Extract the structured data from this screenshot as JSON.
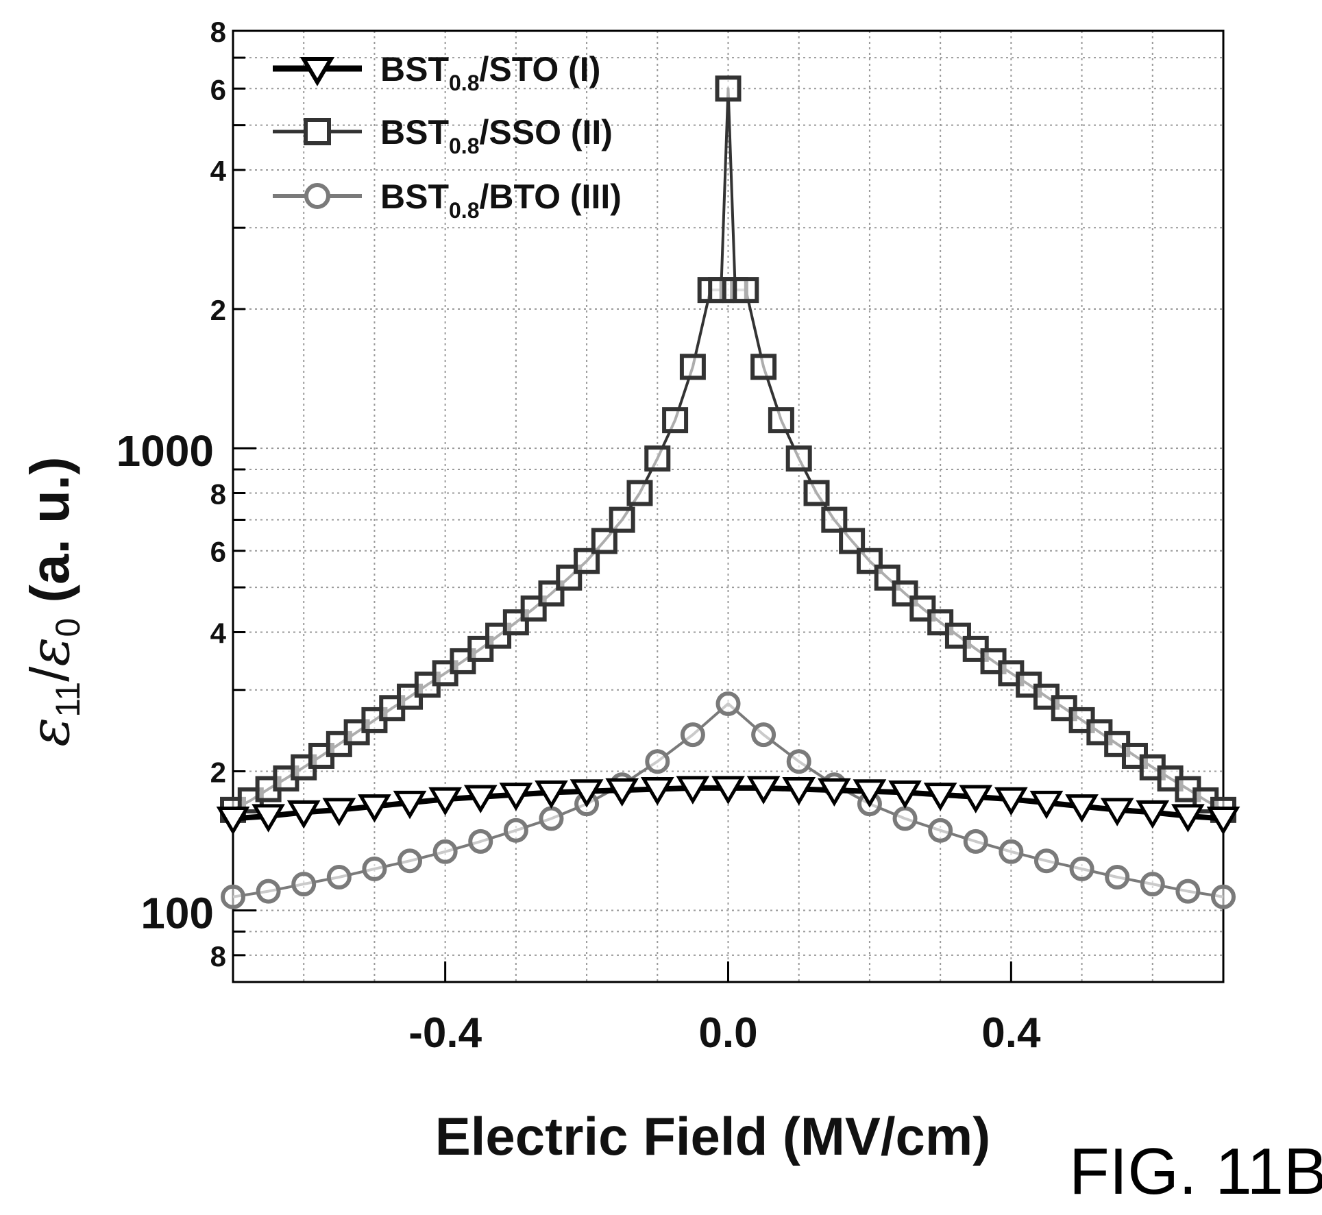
{
  "figure_label": "FIG. 11B",
  "chart_data": {
    "type": "line",
    "xlabel": "Electric Field (MV/cm)",
    "ylabel": "ε11/ε0 (a. u.)",
    "ylabel_parts": {
      "eps": "ε",
      "sub1": "11",
      "slash": "/",
      "sub0": "0",
      "units": " (a. u.)"
    },
    "xlim": [
      -0.7,
      0.7
    ],
    "ylim": [
      70,
      8000
    ],
    "yscale": "log",
    "grid": true,
    "legend_position": "top-left",
    "x_ticks": [
      {
        "value": -0.4,
        "label": "-0.4"
      },
      {
        "value": 0.0,
        "label": "0.0"
      },
      {
        "value": 0.4,
        "label": "0.4"
      }
    ],
    "y_major_ticks": [
      {
        "value": 100,
        "label": "100"
      },
      {
        "value": 1000,
        "label": "1000"
      }
    ],
    "y_minor_ticks": [
      {
        "value": 80,
        "label": "8"
      },
      {
        "value": 200,
        "label": "2"
      },
      {
        "value": 400,
        "label": "4"
      },
      {
        "value": 600,
        "label": "6"
      },
      {
        "value": 800,
        "label": "8"
      },
      {
        "value": 2000,
        "label": "2"
      },
      {
        "value": 4000,
        "label": "4"
      },
      {
        "value": 6000,
        "label": "6"
      },
      {
        "value": 8000,
        "label": "8"
      }
    ],
    "series": [
      {
        "name": "BST0.8/STO (I)",
        "name_main": "BST",
        "name_sub": "0.8",
        "name_rest": "/STO (I)",
        "marker": "triangle-down",
        "color": "#000000",
        "x": [
          -0.7,
          -0.65,
          -0.6,
          -0.55,
          -0.5,
          -0.45,
          -0.4,
          -0.35,
          -0.3,
          -0.25,
          -0.2,
          -0.15,
          -0.1,
          -0.05,
          0.0,
          0.05,
          0.1,
          0.15,
          0.2,
          0.25,
          0.3,
          0.35,
          0.4,
          0.45,
          0.5,
          0.55,
          0.6,
          0.65,
          0.7
        ],
        "y": [
          158,
          160,
          163,
          165,
          168,
          171,
          174,
          176,
          178,
          180,
          181,
          182,
          183,
          184,
          184,
          184,
          183,
          182,
          181,
          180,
          178,
          176,
          174,
          171,
          168,
          165,
          163,
          160,
          158
        ]
      },
      {
        "name": "BST0.8/SSO (II)",
        "name_main": "BST",
        "name_sub": "0.8",
        "name_rest": "/SSO (II)",
        "marker": "square",
        "color": "#333333",
        "x": [
          -0.7,
          -0.675,
          -0.65,
          -0.625,
          -0.6,
          -0.575,
          -0.55,
          -0.525,
          -0.5,
          -0.475,
          -0.45,
          -0.425,
          -0.4,
          -0.375,
          -0.35,
          -0.325,
          -0.3,
          -0.275,
          -0.25,
          -0.225,
          -0.2,
          -0.175,
          -0.15,
          -0.125,
          -0.1,
          -0.075,
          -0.05,
          -0.025,
          -0.01,
          0.0,
          0.01,
          0.025,
          0.05,
          0.075,
          0.1,
          0.125,
          0.15,
          0.175,
          0.2,
          0.225,
          0.25,
          0.275,
          0.3,
          0.325,
          0.35,
          0.375,
          0.4,
          0.425,
          0.45,
          0.475,
          0.5,
          0.525,
          0.55,
          0.575,
          0.6,
          0.625,
          0.65,
          0.675,
          0.7
        ],
        "y": [
          165,
          173,
          183,
          193,
          204,
          216,
          229,
          243,
          258,
          274,
          290,
          308,
          326,
          346,
          368,
          393,
          420,
          450,
          485,
          525,
          570,
          630,
          700,
          800,
          950,
          1150,
          1500,
          2200,
          2200,
          6000,
          2200,
          2200,
          1500,
          1150,
          950,
          800,
          700,
          630,
          570,
          525,
          485,
          450,
          420,
          393,
          368,
          346,
          326,
          308,
          290,
          274,
          258,
          243,
          229,
          216,
          204,
          193,
          183,
          173,
          165
        ]
      },
      {
        "name": "BST0.8/BTO (III)",
        "name_main": "BST",
        "name_sub": "0.8",
        "name_rest": "/BTO (III)",
        "marker": "circle",
        "color": "#7a7a7a",
        "x": [
          -0.7,
          -0.65,
          -0.6,
          -0.55,
          -0.5,
          -0.45,
          -0.4,
          -0.35,
          -0.3,
          -0.25,
          -0.2,
          -0.15,
          -0.1,
          -0.05,
          0.0,
          0.05,
          0.1,
          0.15,
          0.2,
          0.25,
          0.3,
          0.35,
          0.4,
          0.45,
          0.5,
          0.55,
          0.6,
          0.65,
          0.7
        ],
        "y": [
          107,
          110,
          114,
          118,
          123,
          128,
          134,
          141,
          149,
          158,
          170,
          187,
          210,
          240,
          280,
          240,
          210,
          187,
          170,
          158,
          149,
          141,
          134,
          128,
          123,
          118,
          114,
          110,
          107
        ]
      }
    ]
  }
}
